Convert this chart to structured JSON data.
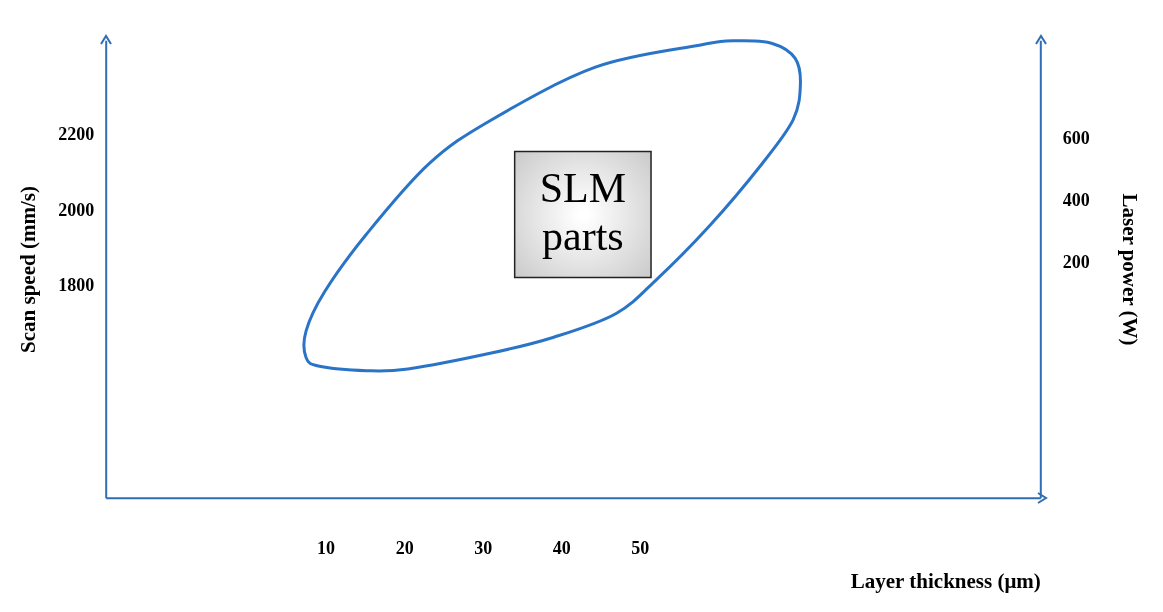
{
  "chart_data": {
    "type": "line",
    "xlabel": "Layer thickness (μm)",
    "ylabel": "Scan speed (mm/s)",
    "y2label": "Laser power (W)",
    "xlim": [
      -18,
      101
    ],
    "xticks": [
      10,
      20,
      30,
      40,
      50
    ],
    "ylim": [
      1240,
      2450
    ],
    "yticks": [
      1800,
      2000,
      2200
    ],
    "y2lim": [
      -560,
      920
    ],
    "y2ticks": [
      200,
      400,
      600
    ],
    "annotations": [
      "SLM parts"
    ],
    "grid": false,
    "legend": false
  }
}
